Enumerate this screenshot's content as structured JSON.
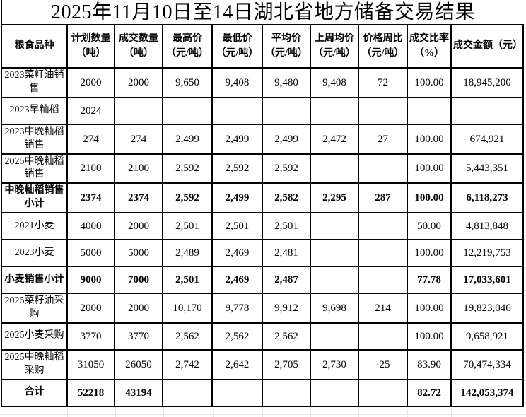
{
  "title": "2025年11月10日至14日湖北省地方储备交易结果",
  "table": {
    "columns": [
      {
        "label": "粮食品种"
      },
      {
        "label": "计划数量\n（吨）"
      },
      {
        "label": "成交数量\n（吨）"
      },
      {
        "label": "最高价\n（元/吨）"
      },
      {
        "label": "最低价\n（元/吨）"
      },
      {
        "label": "平均价\n（元/吨）"
      },
      {
        "label": "上周均价\n（元/吨）"
      },
      {
        "label": "价格周比\n（元/吨）"
      },
      {
        "label": "成交比率\n（%）"
      },
      {
        "label": "成交金额（元）"
      }
    ],
    "rows": [
      {
        "name": "2023菜籽油销售",
        "bold": false,
        "values": [
          "2000",
          "2000",
          "9,650",
          "9,408",
          "9,480",
          "9,408",
          "72",
          "100.00",
          "18,945,200"
        ]
      },
      {
        "name": "2023早籼稻",
        "bold": false,
        "values": [
          "2024",
          "",
          "",
          "",
          "",
          "",
          "",
          "",
          ""
        ]
      },
      {
        "name": "2023中晚籼稻销售",
        "bold": false,
        "values": [
          "274",
          "274",
          "2,499",
          "2,499",
          "2,499",
          "2,472",
          "27",
          "100.00",
          "674,921"
        ]
      },
      {
        "name": "2025中晚籼稻销售",
        "bold": false,
        "values": [
          "2100",
          "2100",
          "2,592",
          "2,592",
          "2,592",
          "",
          "",
          "100.00",
          "5,443,351"
        ]
      },
      {
        "name": "中晚籼稻销售小计",
        "bold": true,
        "values": [
          "2374",
          "2374",
          "2,592",
          "2,499",
          "2,582",
          "2,295",
          "287",
          "100.00",
          "6,118,273"
        ]
      },
      {
        "name": "2021小麦",
        "bold": false,
        "values": [
          "4000",
          "2000",
          "2,501",
          "2,501",
          "2,501",
          "",
          "",
          "50.00",
          "4,813,848"
        ]
      },
      {
        "name": "2023小麦",
        "bold": false,
        "values": [
          "5000",
          "5000",
          "2,489",
          "2,469",
          "2,481",
          "",
          "",
          "100.00",
          "12,219,753"
        ]
      },
      {
        "name": "小麦销售小计",
        "bold": true,
        "values": [
          "9000",
          "7000",
          "2,501",
          "2,469",
          "2,487",
          "",
          "",
          "77.78",
          "17,033,601"
        ]
      },
      {
        "name": "2025菜籽油采购",
        "bold": false,
        "values": [
          "2000",
          "2000",
          "10,170",
          "9,778",
          "9,912",
          "9,698",
          "214",
          "100.00",
          "19,823,046"
        ]
      },
      {
        "name": "2025小麦采购",
        "bold": false,
        "values": [
          "3770",
          "3770",
          "2,562",
          "2,562",
          "2,562",
          "",
          "",
          "100.00",
          "9,658,921"
        ]
      },
      {
        "name": "2025中晚籼稻采购",
        "bold": false,
        "values": [
          "31050",
          "26050",
          "2,742",
          "2,642",
          "2,705",
          "2,730",
          "-25",
          "83.90",
          "70,474,334"
        ]
      },
      {
        "name": "合计",
        "bold": true,
        "values": [
          "52218",
          "43194",
          "",
          "",
          "",
          "",
          "",
          "82.72",
          "142,053,374"
        ]
      }
    ]
  }
}
